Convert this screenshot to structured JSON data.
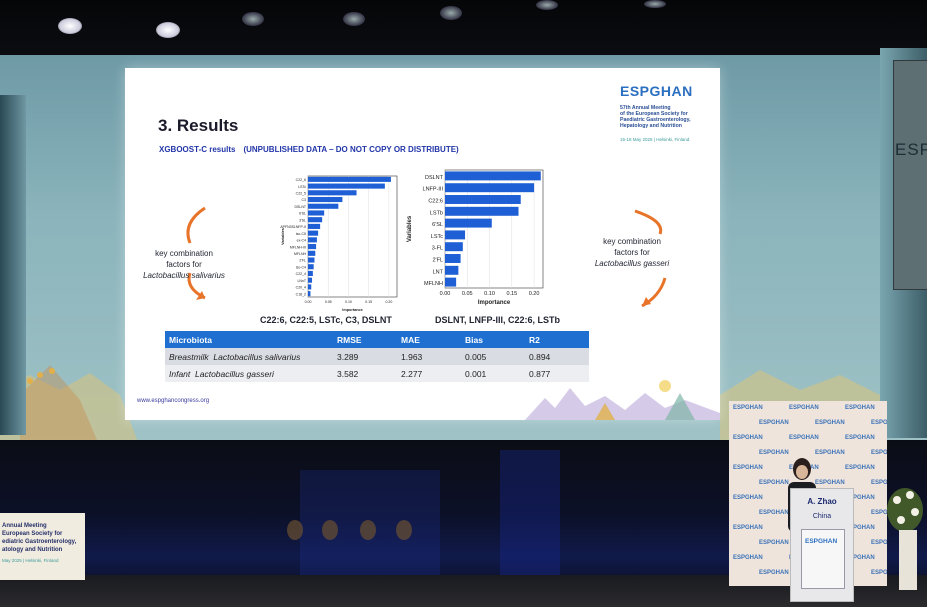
{
  "slide": {
    "title": "3. Results",
    "subtitle": "XGBOOST-C results　(UNPUBLISHED DATA – DO NOT COPY OR DISTRIBUTE)",
    "logo": {
      "wordmark": "ESPGHAN",
      "line1": "57th Annual Meeting",
      "line2": "of the European Society for",
      "line3": "Paediatric Gastroenterology,",
      "line4": "Hepatology and Nutrition",
      "dates": "15-18 May 2025 | Helsinki, Finland"
    },
    "left_note": {
      "line1": "key combination",
      "line2": "factors for",
      "line3": "Lactobacillus salivarius"
    },
    "right_note": {
      "line1": "key combination",
      "line2": "factors for",
      "line3": "Lactobacillus gasseri"
    },
    "caption_left": "C22:6, C22:5, LSTc, C3, DSLNT",
    "caption_right": "DSLNT, LNFP-III, C22:6, LSTb",
    "url": "www.espghancongress.org",
    "table": {
      "headers": [
        "Microbiota",
        "RMSE",
        "MAE",
        "Bias",
        "R2"
      ],
      "rows": [
        {
          "source": "Breastmilk",
          "organism": "Lactobacillus salivarius",
          "rmse": "3.289",
          "mae": "1.963",
          "bias": "0.005",
          "r2": "0.894"
        },
        {
          "source": "Infant",
          "organism": "Lactobacillus gasseri",
          "rmse": "3.582",
          "mae": "2.277",
          "bias": "0.001",
          "r2": "0.877"
        }
      ]
    }
  },
  "chart_data": [
    {
      "type": "bar",
      "orientation": "horizontal",
      "xlabel": "Importance",
      "ylabel": "Variables",
      "xlim": [
        0,
        0.22
      ],
      "x_ticks": [
        "0.00",
        "0.05",
        "0.10",
        "0.15",
        "0.20"
      ],
      "categories": [
        "C22_6",
        "LSTc",
        "C22_5",
        "C3",
        "DSLNT",
        "6'SL",
        "3'SL",
        "ESLAPFN3SLNFP-II",
        "iso-C5",
        "ex-C4",
        "MFLNH-III",
        "MFLNH",
        "2'FL",
        "iso-C4",
        "C22_4",
        "LNnT",
        "C20_4",
        "C18_2"
      ],
      "values": [
        0.205,
        0.19,
        0.12,
        0.085,
        0.075,
        0.04,
        0.035,
        0.03,
        0.025,
        0.022,
        0.02,
        0.018,
        0.016,
        0.014,
        0.012,
        0.01,
        0.008,
        0.006
      ],
      "color": "#1f5fd6"
    },
    {
      "type": "bar",
      "orientation": "horizontal",
      "xlabel": "Importance",
      "ylabel": "Variables",
      "xlim": [
        0,
        0.22
      ],
      "x_ticks": [
        "0.00",
        "0.05",
        "0.10",
        "0.15",
        "0.20"
      ],
      "categories": [
        "DSLNT",
        "LNFP-III",
        "C22:6",
        "LSTb",
        "6'SL",
        "LSTc",
        "3-FL",
        "2'FL",
        "LNT",
        "MFLNH"
      ],
      "values": [
        0.215,
        0.2,
        0.17,
        0.165,
        0.105,
        0.045,
        0.04,
        0.035,
        0.03,
        0.025
      ],
      "color": "#1f5fd6"
    }
  ],
  "stage": {
    "side_monitor_text": "ESP",
    "left_panel": {
      "line1": "Annual Meeting",
      "line2": "European Society for",
      "line3": "ediatric Gastroenterology,",
      "line4": "atology and Nutrition",
      "line5": "May 2025 | Helsinki, Finland"
    },
    "backdrop_logo": "ESPGHAN",
    "podium": {
      "name": "A. Zhao",
      "country": "China",
      "logo": "ESPGHAN"
    }
  }
}
